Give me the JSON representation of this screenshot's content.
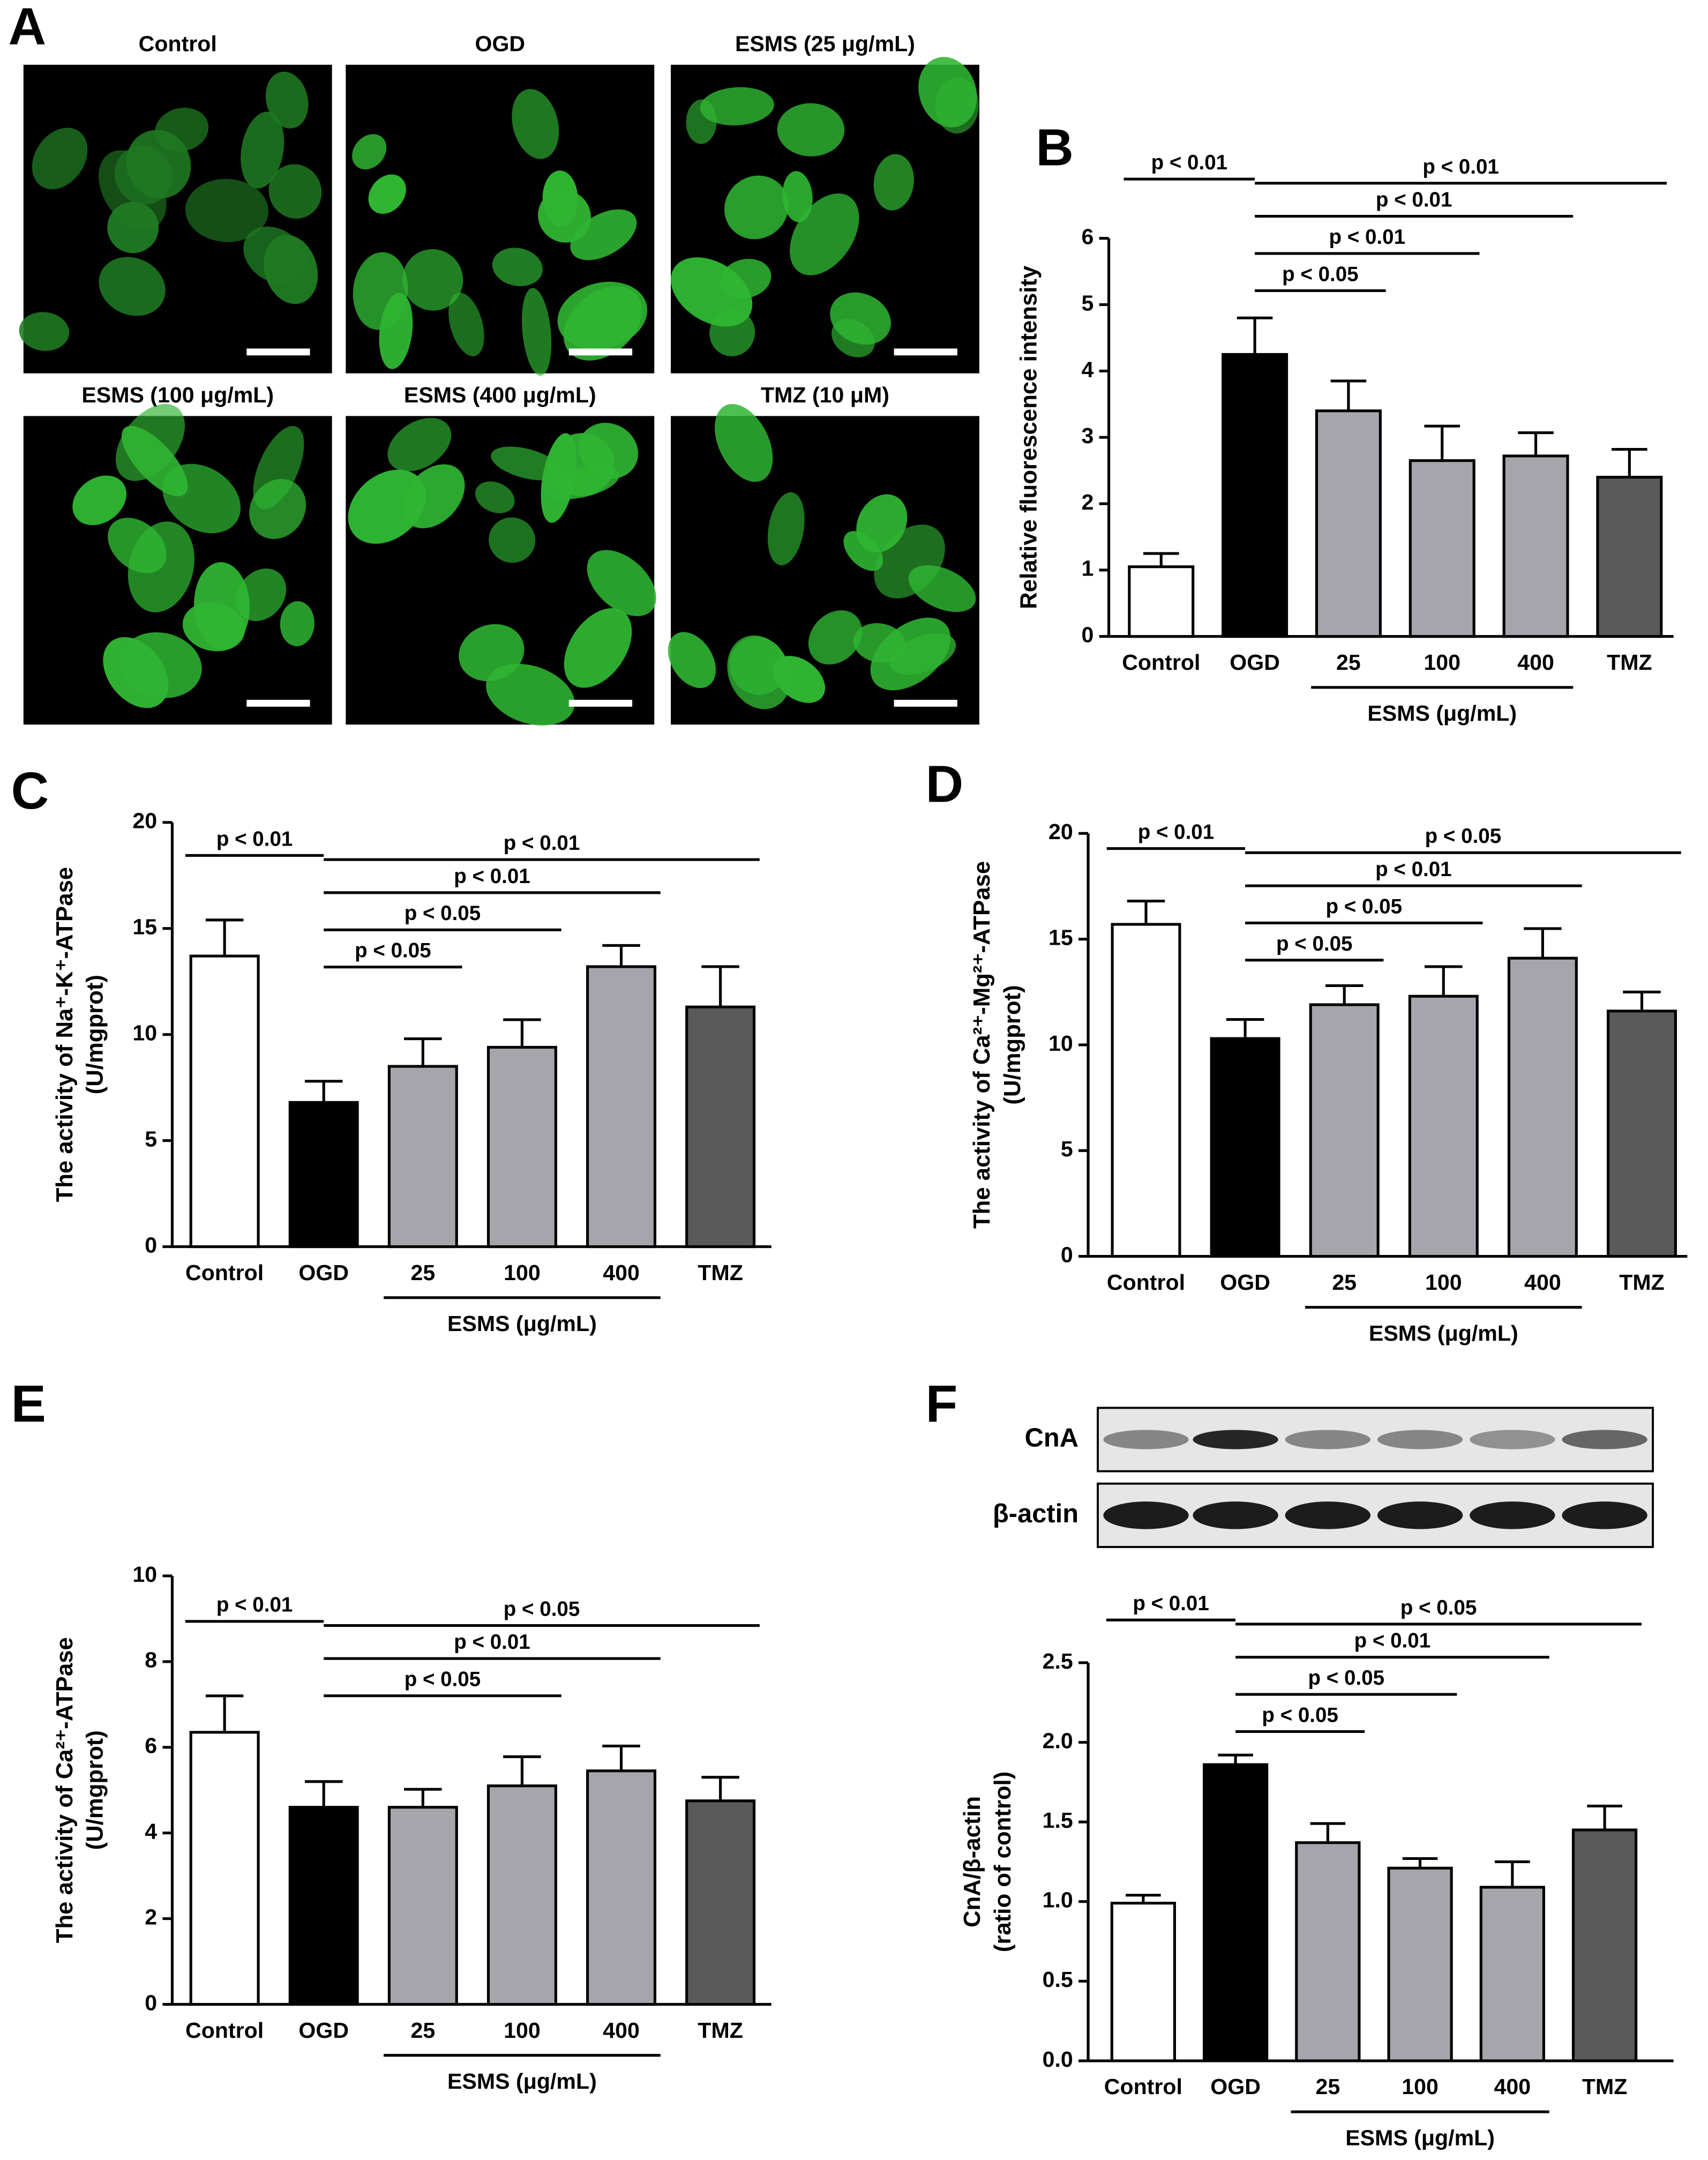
{
  "micrographs": {
    "panel": "A",
    "titles": [
      "Control",
      "OGD",
      "ESMS (25 μg/mL)",
      "ESMS (100 μg/mL)",
      "ESMS (400 μg/mL)",
      "TMZ (10 μM)"
    ]
  },
  "chart_data": [
    {
      "type": "bar",
      "panel": "B",
      "ylabel": [
        "Relative fluorescence intensity"
      ],
      "categories": [
        "Control",
        "OGD",
        "25",
        "100",
        "400",
        "TMZ"
      ],
      "values": [
        1.05,
        4.25,
        3.4,
        2.65,
        2.72,
        2.4
      ],
      "errors": [
        0.2,
        0.55,
        0.45,
        0.52,
        0.35,
        0.42
      ],
      "colors": [
        "#ffffff",
        "#000000",
        "#a5a5ab",
        "#a5a5ab",
        "#a5a5ab",
        "#5a5a5a"
      ],
      "ylim": [
        0,
        6
      ],
      "yticks": [
        0,
        1,
        2,
        3,
        4,
        5,
        6
      ],
      "group": {
        "label": "ESMS (μg/mL)",
        "from": "25",
        "to": "400"
      },
      "annotations": [
        {
          "label": "p < 0.01",
          "from": "Control",
          "to": "OGD"
        },
        {
          "label": "p < 0.01",
          "from": "OGD",
          "to": "TMZ"
        },
        {
          "label": "p < 0.01",
          "from": "OGD",
          "to": "400"
        },
        {
          "label": "p < 0.01",
          "from": "OGD",
          "to": "100"
        },
        {
          "label": "p < 0.05",
          "from": "OGD",
          "to": "25"
        }
      ]
    },
    {
      "type": "bar",
      "panel": "C",
      "ylabel": [
        "The activity of Na⁺-K⁺-ATPase",
        "(U/mgprot)"
      ],
      "categories": [
        "Control",
        "OGD",
        "25",
        "100",
        "400",
        "TMZ"
      ],
      "values": [
        13.7,
        6.8,
        8.5,
        9.4,
        13.2,
        11.3
      ],
      "errors": [
        1.7,
        1.0,
        1.3,
        1.3,
        1.0,
        1.9
      ],
      "colors": [
        "#ffffff",
        "#000000",
        "#a5a5ab",
        "#a5a5ab",
        "#a5a5ab",
        "#5a5a5a"
      ],
      "ylim": [
        0,
        20
      ],
      "yticks": [
        0,
        5,
        10,
        15,
        20
      ],
      "group": {
        "label": "ESMS (μg/mL)",
        "from": "25",
        "to": "400"
      },
      "annotations": [
        {
          "label": "p < 0.01",
          "from": "Control",
          "to": "OGD"
        },
        {
          "label": "p < 0.01",
          "from": "OGD",
          "to": "TMZ"
        },
        {
          "label": "p < 0.01",
          "from": "OGD",
          "to": "400"
        },
        {
          "label": "p < 0.05",
          "from": "OGD",
          "to": "100"
        },
        {
          "label": "p < 0.05",
          "from": "OGD",
          "to": "25"
        }
      ]
    },
    {
      "type": "bar",
      "panel": "D",
      "ylabel": [
        "The activity of Ca²⁺-Mg²⁺-ATPase",
        "(U/mgprot)"
      ],
      "categories": [
        "Control",
        "OGD",
        "25",
        "100",
        "400",
        "TMZ"
      ],
      "values": [
        15.7,
        10.3,
        11.9,
        12.3,
        14.1,
        11.6
      ],
      "errors": [
        1.1,
        0.9,
        0.9,
        1.4,
        1.4,
        0.9
      ],
      "colors": [
        "#ffffff",
        "#000000",
        "#a5a5ab",
        "#a5a5ab",
        "#a5a5ab",
        "#5a5a5a"
      ],
      "ylim": [
        0,
        20
      ],
      "yticks": [
        0,
        5,
        10,
        15,
        20
      ],
      "group": {
        "label": "ESMS (μg/mL)",
        "from": "25",
        "to": "400"
      },
      "annotations": [
        {
          "label": "p < 0.01",
          "from": "Control",
          "to": "OGD"
        },
        {
          "label": "p < 0.05",
          "from": "OGD",
          "to": "TMZ"
        },
        {
          "label": "p < 0.01",
          "from": "OGD",
          "to": "400"
        },
        {
          "label": "p < 0.05",
          "from": "OGD",
          "to": "100"
        },
        {
          "label": "p < 0.05",
          "from": "OGD",
          "to": "25"
        }
      ]
    },
    {
      "type": "bar",
      "panel": "E",
      "ylabel": [
        "The activity of Ca²⁺-ATPase",
        "(U/mgprot)"
      ],
      "categories": [
        "Control",
        "OGD",
        "25",
        "100",
        "400",
        "TMZ"
      ],
      "values": [
        6.35,
        4.6,
        4.6,
        5.1,
        5.45,
        4.75
      ],
      "errors": [
        0.85,
        0.6,
        0.42,
        0.68,
        0.58,
        0.55
      ],
      "colors": [
        "#ffffff",
        "#000000",
        "#a5a5ab",
        "#a5a5ab",
        "#a5a5ab",
        "#5a5a5a"
      ],
      "ylim": [
        0,
        10
      ],
      "yticks": [
        0,
        2,
        4,
        6,
        8,
        10
      ],
      "group": {
        "label": "ESMS (μg/mL)",
        "from": "25",
        "to": "400"
      },
      "annotations": [
        {
          "label": "p < 0.01",
          "from": "Control",
          "to": "OGD"
        },
        {
          "label": "p < 0.05",
          "from": "OGD",
          "to": "TMZ"
        },
        {
          "label": "p < 0.01",
          "from": "OGD",
          "to": "400"
        },
        {
          "label": "p < 0.05",
          "from": "OGD",
          "to": "100"
        }
      ]
    },
    {
      "type": "bar",
      "panel": "F",
      "blot": [
        "CnA",
        "β-actin"
      ],
      "ylabel": [
        "CnA/β-actin",
        "(ratio of control)"
      ],
      "categories": [
        "Control",
        "OGD",
        "25",
        "100",
        "400",
        "TMZ"
      ],
      "values": [
        0.99,
        1.86,
        1.37,
        1.21,
        1.09,
        1.45
      ],
      "errors": [
        0.05,
        0.06,
        0.12,
        0.06,
        0.16,
        0.15
      ],
      "colors": [
        "#ffffff",
        "#000000",
        "#a5a5ab",
        "#a5a5ab",
        "#a5a5ab",
        "#5a5a5a"
      ],
      "ylim": [
        0,
        2.5
      ],
      "yticks": [
        {
          "value": 0,
          "label": "0.0"
        },
        {
          "value": 0.5,
          "label": "0.5"
        },
        {
          "value": 1,
          "label": "1.0"
        },
        {
          "value": 1.5,
          "label": "1.5"
        },
        {
          "value": 2,
          "label": "2.0"
        },
        {
          "value": 2.5,
          "label": "2.5"
        }
      ],
      "group": {
        "label": "ESMS (μg/mL)",
        "from": "25",
        "to": "400"
      },
      "annotations": [
        {
          "label": "p < 0.01",
          "from": "Control",
          "to": "OGD"
        },
        {
          "label": "p < 0.05",
          "from": "OGD",
          "to": "TMZ"
        },
        {
          "label": "p < 0.01",
          "from": "OGD",
          "to": "400"
        },
        {
          "label": "p < 0.05",
          "from": "OGD",
          "to": "100"
        },
        {
          "label": "p < 0.05",
          "from": "OGD",
          "to": "25"
        }
      ]
    }
  ]
}
